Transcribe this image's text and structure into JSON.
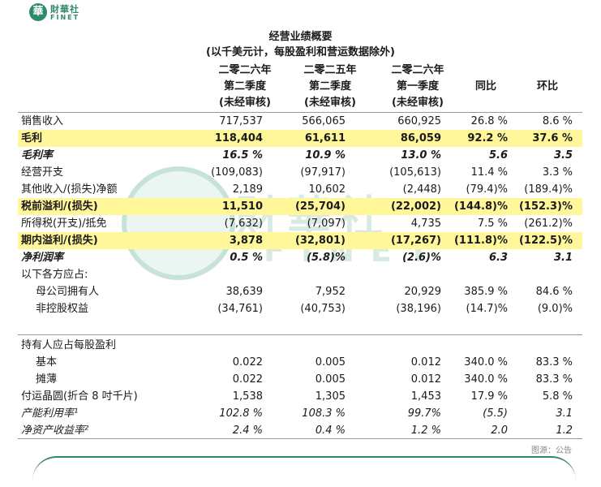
{
  "brand": {
    "seal": "華",
    "name_cn": "財華社",
    "name_en": "FINET"
  },
  "watermark": {
    "cn": "財華社",
    "en": "FINET"
  },
  "title": {
    "line1": "经营业绩概要",
    "line2": "(以千美元计，每股盈利和营运数据除外)"
  },
  "columns": [
    {
      "l1": "二零二六年",
      "l2": "第二季度",
      "l3": "(未经审核)"
    },
    {
      "l1": "二零二五年",
      "l2": "第二季度",
      "l3": "(未经审核)"
    },
    {
      "l1": "二零二六年",
      "l2": "第一季度",
      "l3": "(未经审核)"
    },
    {
      "l1": "同比"
    },
    {
      "l1": "环比"
    }
  ],
  "rows": [
    {
      "label": "销售收入",
      "v": [
        "717,537",
        "566,065",
        "660,925",
        "26.8 %",
        "8.6 %"
      ]
    },
    {
      "label": "毛利",
      "v": [
        "118,404",
        "61,611",
        "86,059",
        "92.2 %",
        "37.6 %"
      ]
    },
    {
      "label": "毛利率",
      "v": [
        "16.5 %",
        "10.9 %",
        "13.0 %",
        "5.6",
        "3.5"
      ]
    },
    {
      "label": "经营开支",
      "v": [
        "(109,083)",
        "(97,917)",
        "(105,613)",
        "11.4 %",
        "3.3 %"
      ]
    },
    {
      "label": "其他收入/(损失)净额",
      "v": [
        "2,189",
        "10,602",
        "(2,448)",
        "(79.4)%",
        "(189.4)%"
      ]
    },
    {
      "label": "税前溢利/(损失)",
      "v": [
        "11,510",
        "(25,704)",
        "(22,002)",
        "(144.8)%",
        "(152.3)%"
      ]
    },
    {
      "label": "所得税(开支)/抵免",
      "v": [
        "(7,632)",
        "(7,097)",
        "4,735",
        "7.5 %",
        "(261.2)%"
      ]
    },
    {
      "label": "期内溢利/(损失)",
      "v": [
        "3,878",
        "(32,801)",
        "(17,267)",
        "(111.8)%",
        "(122.5)%"
      ]
    },
    {
      "label": "净利润率",
      "v": [
        "0.5 %",
        "(5.8)%",
        "(2.6)%",
        "6.3",
        "3.1"
      ]
    },
    {
      "label": "以下各方应占:",
      "v": [
        "",
        "",
        "",
        "",
        ""
      ]
    },
    {
      "label": "母公司拥有人",
      "v": [
        "38,639",
        "7,952",
        "20,929",
        "385.9 %",
        "84.6 %"
      ]
    },
    {
      "label": "非控股权益",
      "v": [
        "(34,761)",
        "(40,753)",
        "(38,196)",
        "(14.7)%",
        "(9.0)%"
      ]
    },
    {
      "label": "持有人应占每股盈利",
      "v": [
        "",
        "",
        "",
        "",
        ""
      ]
    },
    {
      "label": "基本",
      "v": [
        "0.022",
        "0.005",
        "0.012",
        "340.0 %",
        "83.3 %"
      ]
    },
    {
      "label": "摊薄",
      "v": [
        "0.022",
        "0.005",
        "0.012",
        "340.0 %",
        "83.3 %"
      ]
    },
    {
      "label": "付运晶圆(折合 8 吋千片)",
      "v": [
        "1,538",
        "1,305",
        "1,453",
        "17.9 %",
        "5.8 %"
      ]
    },
    {
      "label": "产能利用率¹",
      "v": [
        "102.8 %",
        "108.3 %",
        "99.7%",
        "(5.5)",
        "3.1"
      ]
    },
    {
      "label": "净资产收益率²",
      "v": [
        "2.4 %",
        "0.4 %",
        "1.2 %",
        "2.0",
        "1.2"
      ]
    }
  ],
  "source": "图源：公告"
}
